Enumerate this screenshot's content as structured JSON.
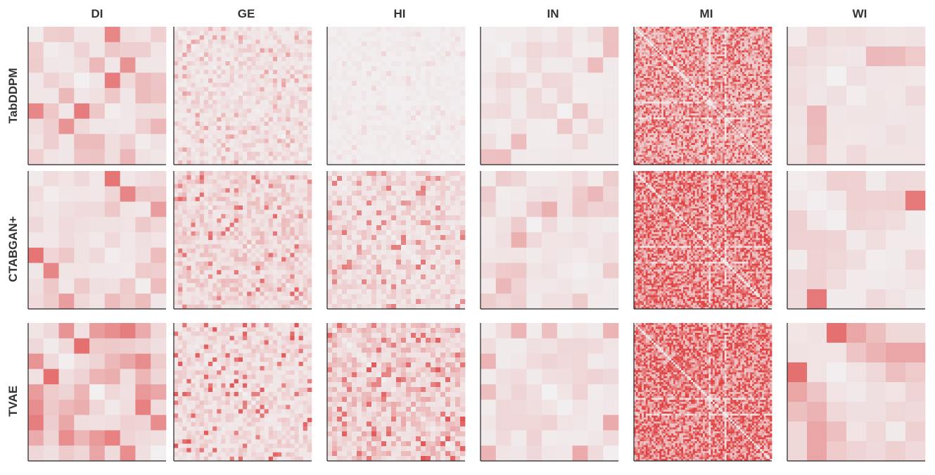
{
  "chart_data": {
    "type": "heatmap",
    "title": "",
    "datasets": [
      "DI",
      "GE",
      "HI",
      "IN",
      "MI",
      "WI"
    ],
    "models": [
      "TabDDPM",
      "CTABGAN+",
      "TVAE"
    ],
    "color_scale": {
      "low": "#f2f0f1",
      "high": "#e04444"
    },
    "grid": false,
    "n_features": {
      "DI": 9,
      "GE": 32,
      "HI": 28,
      "IN": 9,
      "MI": 70,
      "WI": 7
    },
    "mean_intensity": {
      "TabDDPM": {
        "DI": 0.22,
        "GE": 0.15,
        "HI": 0.04,
        "IN": 0.1,
        "MI": 0.72,
        "WI": 0.22
      },
      "CTABGAN+": {
        "DI": 0.2,
        "GE": 0.22,
        "HI": 0.18,
        "IN": 0.15,
        "MI": 0.92,
        "WI": 0.12
      },
      "TVAE": {
        "DI": 0.38,
        "GE": 0.18,
        "HI": 0.28,
        "IN": 0.12,
        "MI": 0.97,
        "WI": 0.3
      }
    },
    "max_intensity": {
      "TabDDPM": {
        "DI": 0.72,
        "GE": 0.45,
        "HI": 0.15,
        "IN": 0.3,
        "MI": 1.0,
        "WI": 0.6
      },
      "CTABGAN+": {
        "DI": 0.72,
        "GE": 0.8,
        "HI": 0.7,
        "IN": 0.4,
        "MI": 1.0,
        "WI": 0.85
      },
      "TVAE": {
        "DI": 0.78,
        "GE": 0.9,
        "HI": 0.9,
        "IN": 0.4,
        "MI": 1.0,
        "WI": 0.9
      }
    }
  }
}
